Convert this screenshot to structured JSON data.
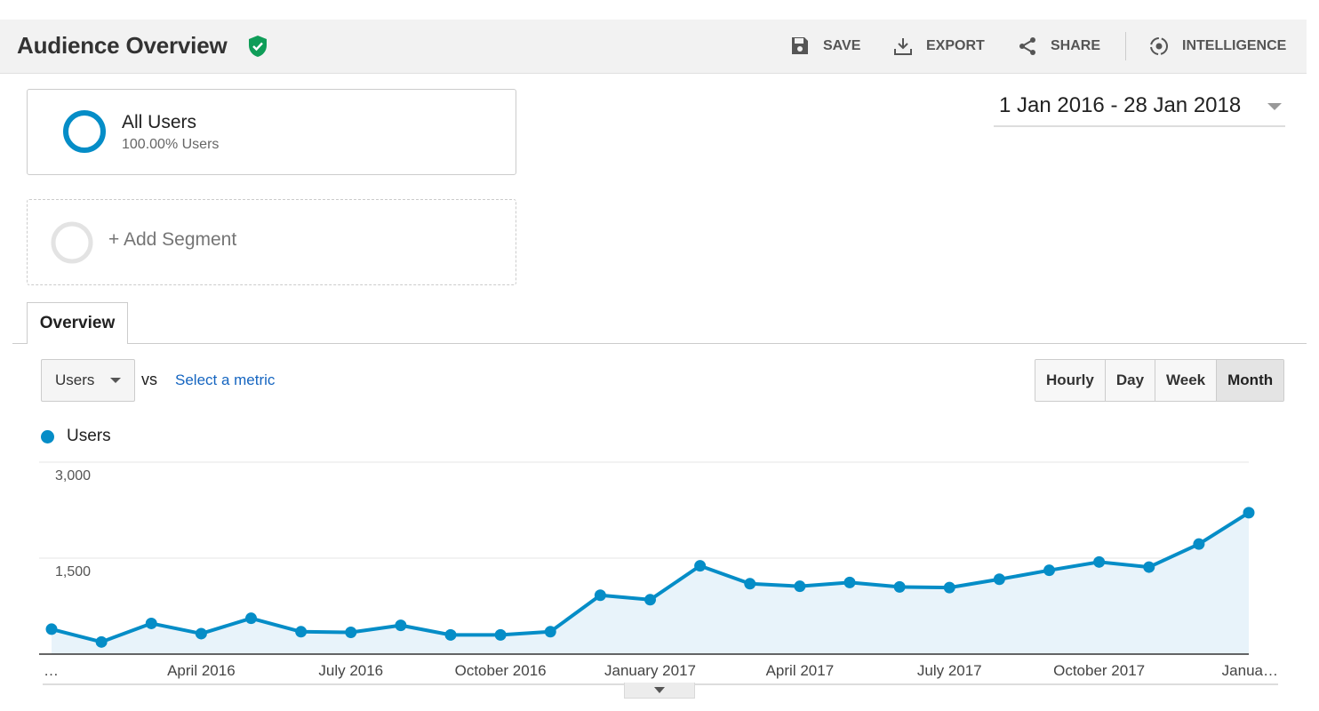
{
  "header": {
    "title": "Audience Overview",
    "actions": {
      "save": "SAVE",
      "export": "EXPORT",
      "share": "SHARE",
      "intelligence": "INTELLIGENCE"
    }
  },
  "segments": {
    "active": {
      "name": "All Users",
      "subtitle": "100.00% Users"
    },
    "add_label": "+ Add Segment"
  },
  "date_range": "1 Jan 2016 - 28 Jan 2018",
  "tabs": [
    "Overview"
  ],
  "metric_selector": {
    "selected": "Users",
    "vs_label": "vs",
    "secondary_label": "Select a metric"
  },
  "granularity": {
    "options": [
      "Hourly",
      "Day",
      "Week",
      "Month"
    ],
    "active": "Month"
  },
  "colors": {
    "series": "#058dc7",
    "area_fill": "#e8f3fa",
    "verified_badge": "#0f9d58"
  },
  "chart_data": {
    "type": "area",
    "title": "",
    "legend": [
      "Users"
    ],
    "ylim": [
      0,
      3000
    ],
    "y_ticks": [
      "3,000",
      "1,500"
    ],
    "x_tick_labels": [
      "…",
      "April 2016",
      "July 2016",
      "October 2016",
      "January 2017",
      "April 2017",
      "July 2017",
      "October 2017",
      "Janua…"
    ],
    "x": [
      "Jan 2016",
      "Feb 2016",
      "Mar 2016",
      "Apr 2016",
      "May 2016",
      "Jun 2016",
      "Jul 2016",
      "Aug 2016",
      "Sep 2016",
      "Oct 2016",
      "Nov 2016",
      "Dec 2016",
      "Jan 2017",
      "Feb 2017",
      "Mar 2017",
      "Apr 2017",
      "May 2017",
      "Jun 2017",
      "Jul 2017",
      "Aug 2017",
      "Sep 2017",
      "Oct 2017",
      "Nov 2017",
      "Dec 2017",
      "Jan 2018"
    ],
    "series": [
      {
        "name": "Users",
        "values": [
          390,
          190,
          480,
          320,
          560,
          350,
          340,
          450,
          300,
          300,
          350,
          920,
          850,
          1380,
          1100,
          1060,
          1120,
          1050,
          1040,
          1170,
          1310,
          1440,
          1360,
          1720,
          2210
        ]
      }
    ],
    "grid": true
  }
}
